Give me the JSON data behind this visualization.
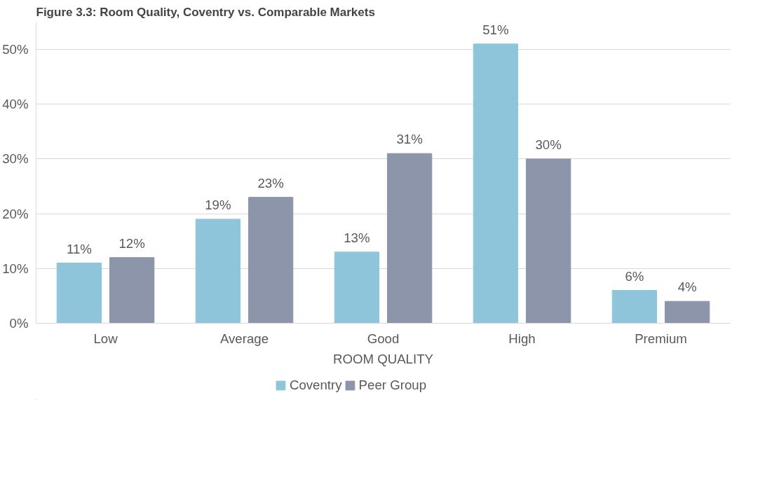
{
  "chart_data": {
    "type": "bar",
    "title": "Figure 3.3: Room Quality, Coventry vs. Comparable Markets",
    "xlabel": "ROOM QUALITY",
    "categories": [
      "Low",
      "Average",
      "Good",
      "High",
      "Premium"
    ],
    "series": [
      {
        "name": "Coventry",
        "color": "#8ec5da",
        "values": [
          11,
          19,
          13,
          51,
          6
        ],
        "value_labels": [
          "11%",
          "19%",
          "13%",
          "51%",
          "6%"
        ]
      },
      {
        "name": "Peer Group",
        "color": "#8c95a9",
        "values": [
          12,
          23,
          31,
          30,
          4
        ],
        "value_labels": [
          "12%",
          "23%",
          "31%",
          "30%",
          "4%"
        ]
      }
    ],
    "ylim": [
      0,
      55
    ],
    "yticks": [
      {
        "value": 0,
        "label": "0%"
      },
      {
        "value": 10,
        "label": "10%"
      },
      {
        "value": 20,
        "label": "20%"
      },
      {
        "value": 30,
        "label": "30%"
      },
      {
        "value": 40,
        "label": "40%"
      },
      {
        "value": 50,
        "label": "50%"
      }
    ],
    "grid": "y",
    "legend": "bottom"
  }
}
